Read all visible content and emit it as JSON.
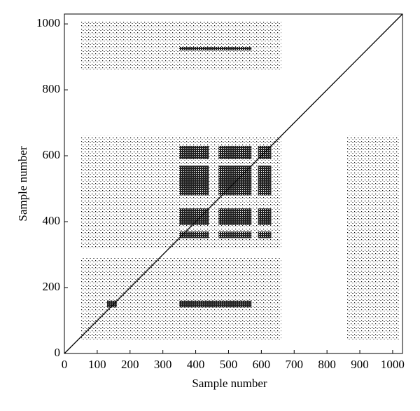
{
  "chart_data": {
    "type": "recurrence",
    "xlabel": "Sample number",
    "ylabel": "Sample number",
    "xlim": [
      0,
      1030
    ],
    "ylim": [
      0,
      1030
    ],
    "xticks": [
      0,
      100,
      200,
      300,
      400,
      500,
      600,
      700,
      800,
      900,
      1000
    ],
    "yticks": [
      0,
      200,
      400,
      600,
      800,
      1000
    ],
    "color": "#000000",
    "diagonal": true,
    "regions": [
      {
        "x": [
          50,
          660
        ],
        "y": [
          320,
          660
        ],
        "dense": false
      },
      {
        "x": [
          50,
          660
        ],
        "y": [
          40,
          290
        ],
        "dense": false
      },
      {
        "x": [
          50,
          660
        ],
        "y": [
          860,
          1010
        ],
        "dense": false
      },
      {
        "x": [
          860,
          1020
        ],
        "y": [
          40,
          660
        ],
        "dense": false
      },
      {
        "x": [
          350,
          440
        ],
        "y": [
          590,
          630
        ],
        "dense": true
      },
      {
        "x": [
          470,
          570
        ],
        "y": [
          590,
          630
        ],
        "dense": true
      },
      {
        "x": [
          590,
          630
        ],
        "y": [
          590,
          630
        ],
        "dense": true
      },
      {
        "x": [
          350,
          440
        ],
        "y": [
          480,
          570
        ],
        "dense": true
      },
      {
        "x": [
          470,
          570
        ],
        "y": [
          480,
          570
        ],
        "dense": true
      },
      {
        "x": [
          590,
          630
        ],
        "y": [
          480,
          570
        ],
        "dense": true
      },
      {
        "x": [
          350,
          440
        ],
        "y": [
          390,
          440
        ],
        "dense": true
      },
      {
        "x": [
          470,
          570
        ],
        "y": [
          390,
          440
        ],
        "dense": true
      },
      {
        "x": [
          590,
          630
        ],
        "y": [
          390,
          440
        ],
        "dense": true
      },
      {
        "x": [
          350,
          440
        ],
        "y": [
          350,
          370
        ],
        "dense": true
      },
      {
        "x": [
          470,
          570
        ],
        "y": [
          350,
          370
        ],
        "dense": true
      },
      {
        "x": [
          590,
          630
        ],
        "y": [
          350,
          370
        ],
        "dense": true
      },
      {
        "x": [
          130,
          160
        ],
        "y": [
          140,
          160
        ],
        "dense": true
      },
      {
        "x": [
          350,
          570
        ],
        "y": [
          140,
          160
        ],
        "dense": true
      },
      {
        "x": [
          350,
          570
        ],
        "y": [
          920,
          930
        ],
        "dense": true
      }
    ]
  }
}
